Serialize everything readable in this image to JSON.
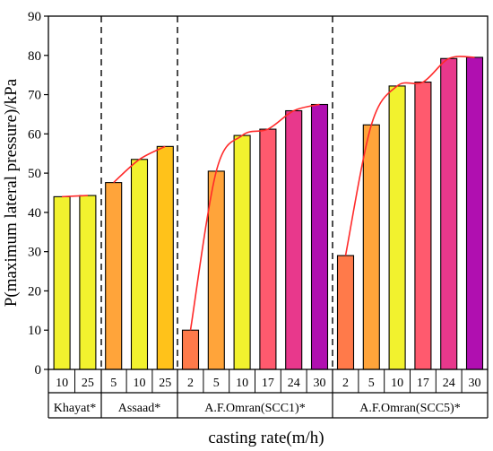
{
  "chart_data": {
    "type": "bar",
    "xlabel": "casting rate(m/h)",
    "ylabel": "P(maximum lateral pressure)/kPa",
    "ylim": [
      0,
      90
    ],
    "yticks": [
      0,
      10,
      20,
      30,
      40,
      50,
      60,
      70,
      80,
      90
    ],
    "grid": false,
    "trend_line_color": "#ff2a2a",
    "groups": [
      {
        "name": "Khayat*",
        "bars": [
          {
            "rate": "10",
            "value": 44.0,
            "color": "#f2f22e"
          },
          {
            "rate": "25",
            "value": 44.3,
            "color": "#f2f22e"
          }
        ]
      },
      {
        "name": "Assaad*",
        "bars": [
          {
            "rate": "5",
            "value": 47.6,
            "color": "#ffa43a"
          },
          {
            "rate": "10",
            "value": 53.5,
            "color": "#f2f22e"
          },
          {
            "rate": "25",
            "value": 56.8,
            "color": "#ffc21a"
          }
        ]
      },
      {
        "name": "A.F.Omran(SCC1)*",
        "bars": [
          {
            "rate": "2",
            "value": 10.0,
            "color": "#ff7a4a"
          },
          {
            "rate": "5",
            "value": 50.5,
            "color": "#ffa43a"
          },
          {
            "rate": "10",
            "value": 59.6,
            "color": "#f2f22e"
          },
          {
            "rate": "17",
            "value": 61.2,
            "color": "#ff5a6e"
          },
          {
            "rate": "24",
            "value": 65.9,
            "color": "#e8388c"
          },
          {
            "rate": "30",
            "value": 67.5,
            "color": "#b00fb0"
          }
        ]
      },
      {
        "name": "A.F.Omran(SCC5)*",
        "bars": [
          {
            "rate": "2",
            "value": 29.0,
            "color": "#ff7a4a"
          },
          {
            "rate": "5",
            "value": 62.3,
            "color": "#ffa43a"
          },
          {
            "rate": "10",
            "value": 72.2,
            "color": "#f2f22e"
          },
          {
            "rate": "17",
            "value": 73.2,
            "color": "#ff5a6e"
          },
          {
            "rate": "24",
            "value": 79.2,
            "color": "#e8388c"
          },
          {
            "rate": "30",
            "value": 79.5,
            "color": "#b00fb0"
          }
        ]
      }
    ]
  }
}
